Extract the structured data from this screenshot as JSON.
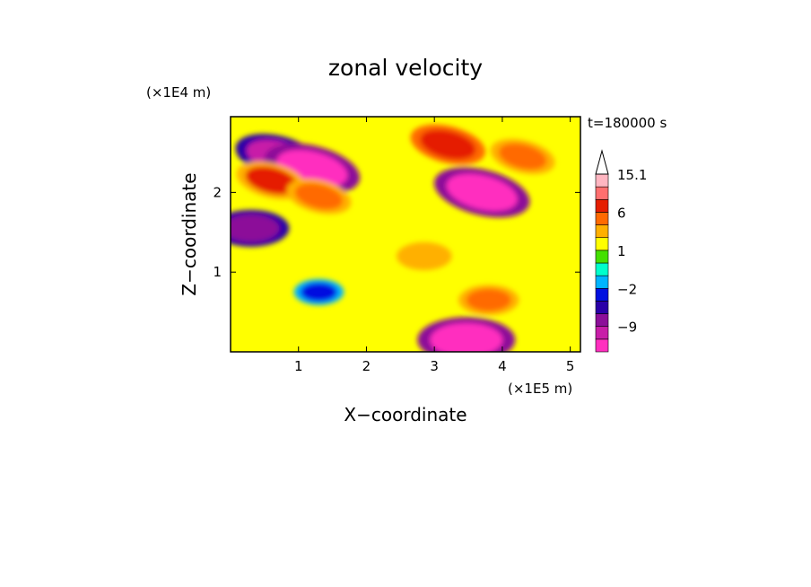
{
  "chart_data": {
    "type": "heatmap",
    "title": "zonal velocity",
    "xlabel": "X−coordinate",
    "ylabel": "Z−coordinate",
    "x_unit": "(×1E5 m)",
    "y_unit": "(×1E4 m)",
    "time_label": "t=180000 s",
    "xlim": [
      0,
      5.15
    ],
    "ylim": [
      0,
      2.95
    ],
    "x_ticks": [
      "1",
      "2",
      "3",
      "4",
      "5"
    ],
    "y_ticks": [
      "1",
      "2"
    ],
    "colorbar": {
      "levels": [
        15.1,
        12,
        9,
        6,
        4,
        2,
        1,
        0,
        -1,
        -2,
        -4,
        -6,
        -9,
        -12,
        -15.1
      ],
      "labels": [
        "15.1",
        "6",
        "1",
        "−2",
        "−9"
      ],
      "colors": [
        "#ff2fbf",
        "#c81ea8",
        "#8c0f99",
        "#2a00a8",
        "#0010e0",
        "#00b4ff",
        "#00ffcc",
        "#44e000",
        "#ffff00",
        "#ffb000",
        "#ff6a00",
        "#e51e00",
        "#ff6f6f",
        "#ffb6c1"
      ]
    },
    "features": [
      {
        "x": 0.7,
        "z": 2.45,
        "value": -10,
        "label": "negative band, upper left"
      },
      {
        "x": 1.2,
        "z": 2.3,
        "value": -12,
        "label": "negative band, upper left"
      },
      {
        "x": 0.6,
        "z": 2.15,
        "value": 7,
        "label": "positive band, upper left"
      },
      {
        "x": 1.3,
        "z": 1.95,
        "value": 6,
        "label": "positive band"
      },
      {
        "x": 0.3,
        "z": 1.55,
        "value": -8,
        "label": "negative, left"
      },
      {
        "x": 3.2,
        "z": 2.6,
        "value": 8,
        "label": "positive, upper"
      },
      {
        "x": 3.7,
        "z": 2.0,
        "value": -12,
        "label": "negative streaks, upper right"
      },
      {
        "x": 4.3,
        "z": 2.45,
        "value": 6,
        "label": "positive streaks, upper right"
      },
      {
        "x": 2.85,
        "z": 1.2,
        "value": 4,
        "label": "positive patch, middle"
      },
      {
        "x": 3.8,
        "z": 0.65,
        "value": 5,
        "label": "positive patch, lower right"
      },
      {
        "x": 1.3,
        "z": 0.75,
        "value": -3,
        "label": "negative patch, lower left"
      },
      {
        "x": 3.47,
        "z": 0.15,
        "value": -12,
        "label": "negative spike at surface"
      }
    ]
  }
}
